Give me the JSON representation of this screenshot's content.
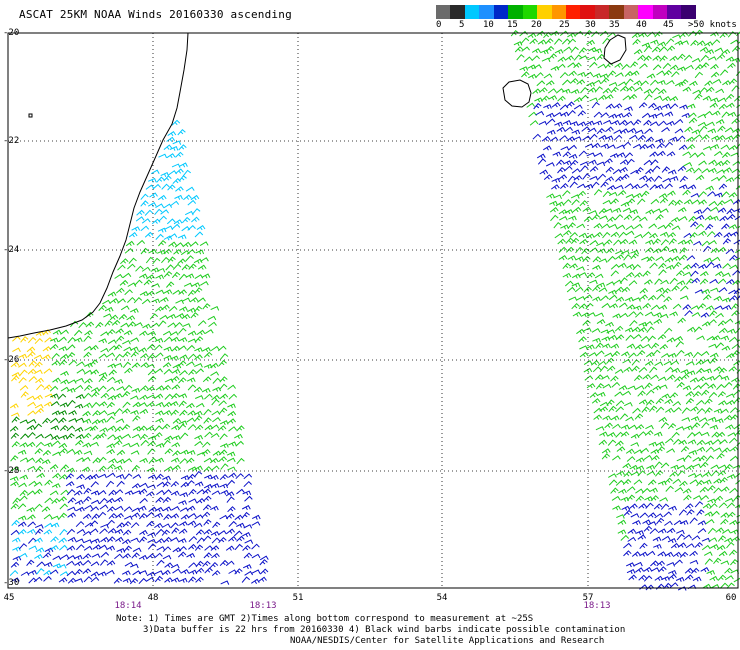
{
  "title": "ASCAT 25KM NOAA Winds 20160330 ascending",
  "legend": {
    "labels": [
      "0",
      "5",
      "10",
      "15",
      "20",
      "25",
      "30",
      "35",
      "40",
      "45",
      ">50 knots"
    ],
    "colors": [
      "#6b6b6b",
      "#2a2a2a",
      "#00c8ff",
      "#1e90ff",
      "#0028c8",
      "#00b000",
      "#20d800",
      "#ffd000",
      "#ff9600",
      "#ff2000",
      "#e01010",
      "#c82828",
      "#8b3a10",
      "#c86464",
      "#ff00ff",
      "#c000c0",
      "#6000a0",
      "#3a0070"
    ]
  },
  "axes": {
    "lat_labels": [
      "-20",
      "-22",
      "-24",
      "-26",
      "-28",
      "-30"
    ],
    "lon_labels": [
      "45",
      "48",
      "51",
      "54",
      "57",
      "60"
    ]
  },
  "times": [
    "18:14",
    "18:13",
    "18:13"
  ],
  "notes": {
    "line1": "Note: 1) Times are GMT 2)Times along bottom correspond to measurement at ~25S",
    "line2": "3)Data buffer is 22 hrs from 20160330 4) Black wind barbs indicate possible contamination",
    "line3": "NOAA/NESDIS/Center for Satellite Applications and Research"
  },
  "map": {
    "lat_range": [
      -30,
      -20
    ],
    "lon_range": [
      45,
      60
    ],
    "grid": "dotted",
    "barb_colors": {
      "cyan": "#00c8ff",
      "blue": "#0a10c8",
      "green": "#1ecc1e",
      "darkgreen": "#008a00",
      "yellow": "#ffd400",
      "black": "#000000"
    }
  }
}
